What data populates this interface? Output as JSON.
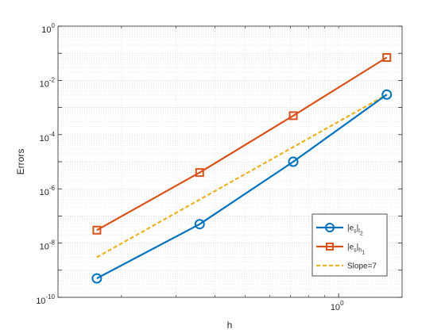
{
  "chart_data": {
    "type": "line",
    "title": "",
    "xlabel": "h",
    "ylabel": "Errors",
    "xscale": "log",
    "yscale": "log",
    "xlim": [
      0.125,
      1.6
    ],
    "ylim": [
      1e-10,
      1
    ],
    "grid": true,
    "grid_minor": true,
    "legend_position": "bottom-right",
    "x_ticks": [
      {
        "base": "10",
        "exp": "0",
        "value": 1
      }
    ],
    "y_ticks": [
      {
        "base": "10",
        "exp": "-10",
        "value": 1e-10
      },
      {
        "base": "10",
        "exp": "-8",
        "value": 1e-08
      },
      {
        "base": "10",
        "exp": "-6",
        "value": 1e-06
      },
      {
        "base": "10",
        "exp": "-4",
        "value": 0.0001
      },
      {
        "base": "10",
        "exp": "-2",
        "value": 0.01
      },
      {
        "base": "10",
        "exp": "0",
        "value": 1
      }
    ],
    "series": [
      {
        "legend_main": "|e",
        "legend_sub1": "s",
        "legend_mid": "|",
        "legend_sub2": "l",
        "legend_sub3": "2",
        "color": "#0072BD",
        "marker": "circle",
        "linestyle": "solid",
        "x": [
          0.1667,
          0.3571,
          0.7143,
          1.4286
        ],
        "y": [
          5e-10,
          5e-08,
          1e-05,
          0.003
        ]
      },
      {
        "legend_main": "|e",
        "legend_sub1": "s",
        "legend_mid": "|",
        "legend_sub2": "h",
        "legend_sub3": "1",
        "color": "#D95319",
        "marker": "square",
        "linestyle": "solid",
        "x": [
          0.1667,
          0.3571,
          0.7143,
          1.4286
        ],
        "y": [
          3e-08,
          4e-06,
          0.0005,
          0.07
        ]
      },
      {
        "legend_main": "Slope=7",
        "color": "#EDB120",
        "marker": "none",
        "linestyle": "dashed",
        "x": [
          0.1667,
          1.4286
        ],
        "y": [
          3e-09,
          0.003
        ]
      }
    ]
  }
}
